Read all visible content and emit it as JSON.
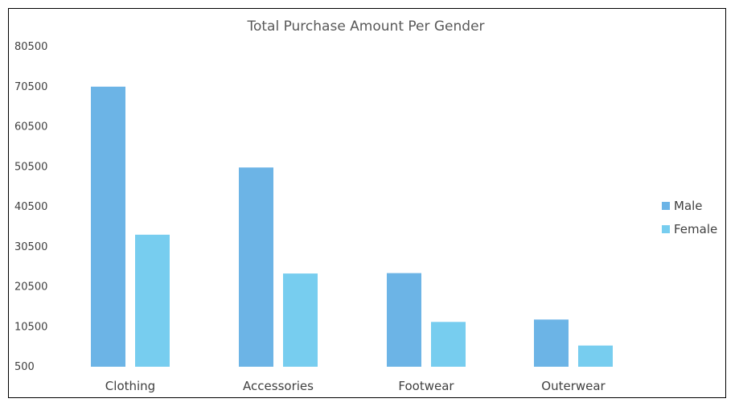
{
  "chart_data": {
    "type": "bar",
    "title": "Total Purchase Amount Per Gender",
    "xlabel": "",
    "ylabel": "",
    "categories": [
      "Clothing",
      "Accessories",
      "Footwear",
      "Outerwear"
    ],
    "series": [
      {
        "name": "Male",
        "color": "#6CB4E6",
        "values": [
          70500,
          50300,
          23900,
          12300
        ]
      },
      {
        "name": "Female",
        "color": "#77CDEF",
        "values": [
          33500,
          23800,
          11700,
          5800
        ]
      }
    ],
    "yticks": [
      500,
      10500,
      20500,
      30500,
      40500,
      50500,
      60500,
      70500,
      80500
    ],
    "ylim": [
      500,
      80500
    ],
    "grid": false,
    "legend_position": "right"
  }
}
